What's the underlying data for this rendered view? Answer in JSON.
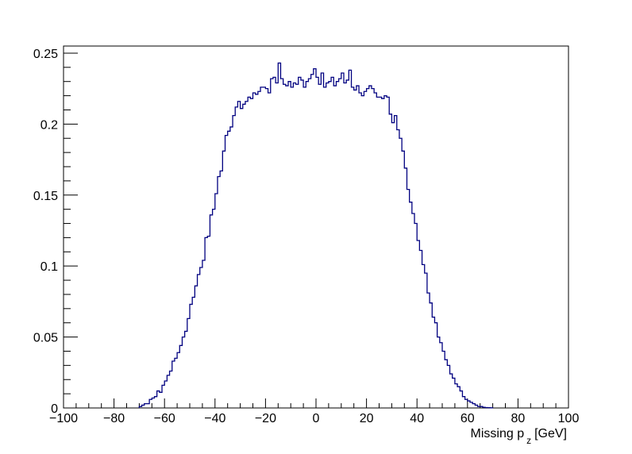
{
  "chart_data": {
    "type": "histogram",
    "title": "",
    "xlabel": {
      "main": "Missing p",
      "sub": "z",
      "unit": "[GeV]"
    },
    "ylabel": "",
    "xlim": [
      -100,
      100
    ],
    "ylim": [
      0,
      0.255
    ],
    "grid": false,
    "legend": "none",
    "x_ticks": [
      -100,
      -80,
      -60,
      -40,
      -20,
      0,
      20,
      40,
      60,
      80,
      100
    ],
    "x_tick_labels": [
      "−100",
      "−80",
      "−60",
      "−40",
      "−20",
      "0",
      "20",
      "40",
      "60",
      "80",
      "100"
    ],
    "y_ticks": [
      0,
      0.05,
      0.1,
      0.15,
      0.2,
      0.25
    ],
    "y_tick_labels": [
      "0",
      "0.05",
      "0.1",
      "0.15",
      "0.2",
      "0.25"
    ],
    "line_color": "#000080",
    "bin_width": 1,
    "bin_edges_start": -70,
    "values": [
      0.001,
      0.002,
      0.003,
      0.003,
      0.006,
      0.007,
      0.008,
      0.012,
      0.011,
      0.016,
      0.019,
      0.023,
      0.026,
      0.033,
      0.035,
      0.039,
      0.044,
      0.05,
      0.054,
      0.063,
      0.073,
      0.078,
      0.086,
      0.094,
      0.099,
      0.104,
      0.12,
      0.121,
      0.136,
      0.14,
      0.151,
      0.163,
      0.167,
      0.181,
      0.192,
      0.195,
      0.198,
      0.206,
      0.212,
      0.216,
      0.211,
      0.214,
      0.216,
      0.219,
      0.218,
      0.222,
      0.221,
      0.223,
      0.226,
      0.226,
      0.225,
      0.222,
      0.232,
      0.233,
      0.229,
      0.243,
      0.232,
      0.228,
      0.227,
      0.23,
      0.226,
      0.229,
      0.228,
      0.233,
      0.231,
      0.226,
      0.23,
      0.232,
      0.235,
      0.239,
      0.233,
      0.228,
      0.236,
      0.226,
      0.229,
      0.23,
      0.233,
      0.227,
      0.23,
      0.232,
      0.236,
      0.229,
      0.231,
      0.238,
      0.226,
      0.224,
      0.227,
      0.222,
      0.22,
      0.223,
      0.225,
      0.227,
      0.225,
      0.222,
      0.219,
      0.219,
      0.218,
      0.22,
      0.219,
      0.207,
      0.201,
      0.206,
      0.196,
      0.19,
      0.181,
      0.169,
      0.154,
      0.145,
      0.137,
      0.13,
      0.118,
      0.111,
      0.101,
      0.095,
      0.081,
      0.074,
      0.064,
      0.06,
      0.05,
      0.046,
      0.04,
      0.034,
      0.03,
      0.024,
      0.021,
      0.017,
      0.015,
      0.012,
      0.008,
      0.006,
      0.005,
      0.004,
      0.003,
      0.002,
      0.001,
      0.001,
      0.0005,
      0.0003,
      0.0002,
      0.0001
    ]
  }
}
